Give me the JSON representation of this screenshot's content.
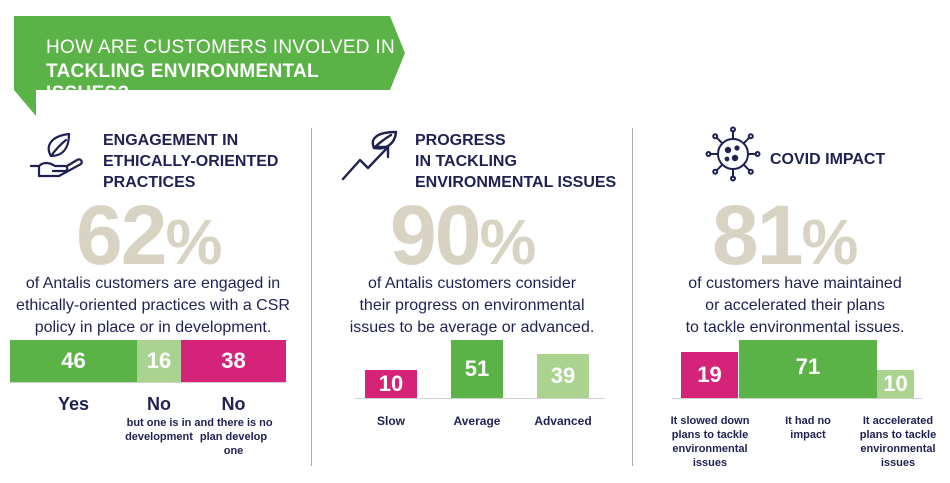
{
  "banner": {
    "line1": "HOW ARE CUSTOMERS INVOLVED IN",
    "line2": "TACKLING ENVIRONMENTAL ISSUES?"
  },
  "colors": {
    "green": "#5bb347",
    "light_green": "#a9d38f",
    "magenta": "#d6237a",
    "navy": "#1f2152",
    "beige": "#d9d3c4"
  },
  "panels": [
    {
      "icon": "hand-leaf-icon",
      "title": [
        "ENGAGEMENT IN",
        "ETHICALLY-ORIENTED",
        "PRACTICES"
      ],
      "percent": "62",
      "percent_sign": "%",
      "description": [
        "of Antalis customers are engaged in",
        "ethically-oriented practices with a CSR",
        "policy in place or in development."
      ]
    },
    {
      "icon": "trend-arrow-leaf-icon",
      "title": [
        "PROGRESS",
        "IN TACKLING",
        "ENVIRONMENTAL ISSUES"
      ],
      "percent": "90",
      "percent_sign": "%",
      "description": [
        "of Antalis customers consider",
        "their progress on environmental",
        "issues to be average or advanced."
      ]
    },
    {
      "icon": "virus-icon",
      "title": [
        "COVID IMPACT"
      ],
      "percent": "81",
      "percent_sign": "%",
      "description": [
        "of customers have maintained",
        "or accelerated their plans",
        "to tackle environmental issues."
      ]
    }
  ],
  "chart_data": [
    {
      "type": "bar",
      "orientation": "horizontal-stacked",
      "categories": [
        "Yes",
        "No",
        "No"
      ],
      "sublabels": [
        "",
        "but one is in development",
        "and there is no plan develop one"
      ],
      "values": [
        46,
        16,
        38
      ],
      "colors": [
        "#5bb347",
        "#a9d38f",
        "#d6237a"
      ]
    },
    {
      "type": "bar",
      "categories": [
        "Slow",
        "Average",
        "Advanced"
      ],
      "values": [
        10,
        51,
        39
      ],
      "colors": [
        "#d6237a",
        "#5bb347",
        "#a9d38f"
      ]
    },
    {
      "type": "bar",
      "categories": [
        "It slowed down plans to tackle environmental issues",
        "It had no impact",
        "It accelerated plans to tackle environmental issues"
      ],
      "values": [
        19,
        71,
        10
      ],
      "colors": [
        "#d6237a",
        "#5bb347",
        "#a9d38f"
      ]
    }
  ]
}
